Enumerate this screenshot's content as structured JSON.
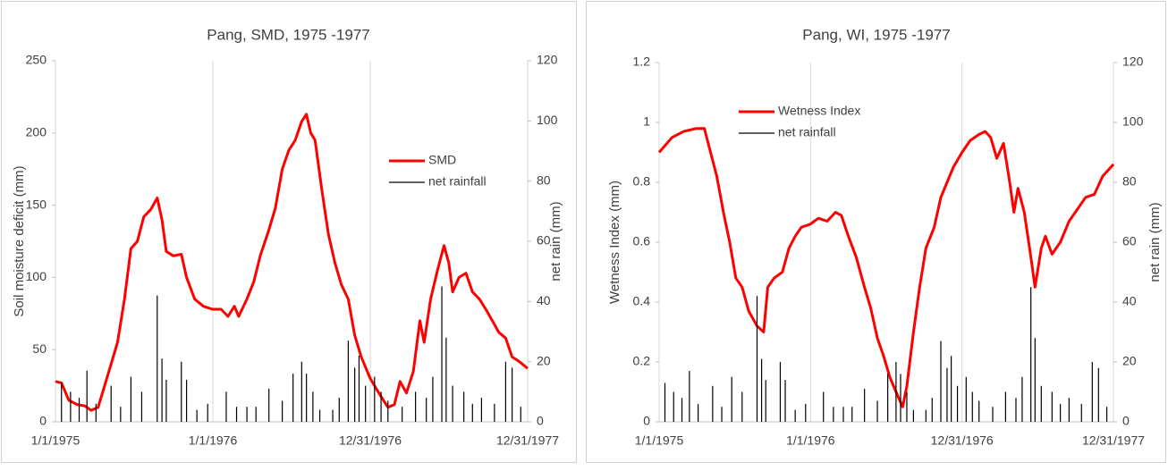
{
  "chart_data": [
    {
      "type": "line",
      "title": "Pang, SMD, 1975 -1977",
      "ylabel": "Soil moisture deficit (mm)",
      "y2label": "net rain (mm)",
      "xlim": [
        "1975-01-01",
        "1977-12-31"
      ],
      "xticks": [
        {
          "value": "1975-01-01",
          "label": "1/1/1975"
        },
        {
          "value": "1976-01-01",
          "label": "1/1/1976"
        },
        {
          "value": "1976-12-31",
          "label": "12/31/1976"
        },
        {
          "value": "1977-12-31",
          "label": "12/31/1977"
        }
      ],
      "ylim": [
        0,
        250
      ],
      "yticks": [
        0,
        50,
        100,
        150,
        200,
        250
      ],
      "y2lim": [
        0,
        120
      ],
      "y2ticks": [
        0,
        20,
        40,
        60,
        80,
        100,
        120
      ],
      "grid": "x",
      "series": [
        {
          "name": "SMD",
          "color": "#ff0000",
          "x": [
            "1975-01-01",
            "1975-01-15",
            "1975-02-01",
            "1975-02-20",
            "1975-03-10",
            "1975-03-25",
            "1975-04-10",
            "1975-04-25",
            "1975-05-10",
            "1975-05-25",
            "1975-06-10",
            "1975-06-25",
            "1975-07-10",
            "1975-07-25",
            "1975-08-10",
            "1975-08-25",
            "1975-09-05",
            "1975-09-15",
            "1975-10-01",
            "1975-10-20",
            "1975-11-01",
            "1975-11-20",
            "1975-12-10",
            "1975-12-31",
            "1976-01-20",
            "1976-02-05",
            "1976-02-20",
            "1976-03-01",
            "1976-03-20",
            "1976-04-05",
            "1976-04-20",
            "1976-05-10",
            "1976-05-25",
            "1976-06-10",
            "1976-06-25",
            "1976-07-10",
            "1976-07-25",
            "1976-08-05",
            "1976-08-15",
            "1976-08-25",
            "1976-09-10",
            "1976-09-25",
            "1976-10-10",
            "1976-10-25",
            "1976-11-10",
            "1976-11-25",
            "1976-12-10",
            "1976-12-31",
            "1977-01-20",
            "1977-02-10",
            "1977-02-25",
            "1977-03-10",
            "1977-03-25",
            "1977-04-10",
            "1977-04-25",
            "1977-05-05",
            "1977-05-20",
            "1977-06-05",
            "1977-06-20",
            "1977-07-01",
            "1977-07-10",
            "1977-07-25",
            "1977-08-10",
            "1977-08-25",
            "1977-09-10",
            "1977-09-25",
            "1977-10-10",
            "1977-10-25",
            "1977-11-10",
            "1977-11-25",
            "1977-12-10",
            "1977-12-31"
          ],
          "values": [
            28,
            27,
            15,
            12,
            11,
            8,
            10,
            25,
            40,
            55,
            85,
            120,
            125,
            142,
            147,
            155,
            140,
            118,
            115,
            116,
            100,
            85,
            80,
            78,
            78,
            73,
            80,
            73,
            85,
            97,
            115,
            133,
            148,
            175,
            188,
            195,
            208,
            213,
            200,
            195,
            160,
            130,
            110,
            95,
            85,
            60,
            45,
            30,
            20,
            10,
            12,
            28,
            20,
            35,
            70,
            55,
            85,
            105,
            122,
            110,
            90,
            100,
            103,
            90,
            85,
            78,
            70,
            62,
            58,
            45,
            42,
            37
          ]
        },
        {
          "name": "net rainfall",
          "color": "#000000",
          "axis": "y2",
          "mark": "spike",
          "x": [
            "1975-01-15",
            "1975-02-05",
            "1975-02-25",
            "1975-03-15",
            "1975-04-05",
            "1975-05-10",
            "1975-06-01",
            "1975-06-25",
            "1975-07-20",
            "1975-08-25",
            "1975-09-05",
            "1975-09-15",
            "1975-10-20",
            "1975-11-01",
            "1975-11-25",
            "1975-12-20",
            "1976-02-01",
            "1976-02-25",
            "1976-03-20",
            "1976-04-10",
            "1976-05-10",
            "1976-06-10",
            "1976-07-05",
            "1976-07-25",
            "1976-08-05",
            "1976-08-20",
            "1976-09-05",
            "1976-10-05",
            "1976-10-20",
            "1976-11-10",
            "1976-11-25",
            "1976-12-05",
            "1976-12-20",
            "1977-01-10",
            "1977-01-25",
            "1977-02-10",
            "1977-03-15",
            "1977-04-15",
            "1977-05-10",
            "1977-05-25",
            "1977-06-15",
            "1977-06-25",
            "1977-07-10",
            "1977-08-05",
            "1977-08-25",
            "1977-09-15",
            "1977-10-15",
            "1977-11-10",
            "1977-11-25",
            "1977-12-15"
          ],
          "values": [
            13,
            10,
            8,
            17,
            6,
            12,
            5,
            15,
            10,
            42,
            21,
            14,
            20,
            14,
            4,
            6,
            10,
            5,
            5,
            5,
            11,
            7,
            16,
            20,
            16,
            10,
            4,
            4,
            8,
            27,
            18,
            22,
            12,
            15,
            10,
            7,
            5,
            10,
            8,
            15,
            45,
            28,
            12,
            10,
            6,
            8,
            6,
            20,
            18,
            5
          ]
        }
      ]
    },
    {
      "type": "line",
      "title": "Pang, WI, 1975 -1977",
      "ylabel": "Wetness Index  (mm)",
      "y2label": "net rain (mm)",
      "xlim": [
        "1975-01-01",
        "1977-12-31"
      ],
      "xticks": [
        {
          "value": "1975-01-01",
          "label": "1/1/1975"
        },
        {
          "value": "1976-01-01",
          "label": "1/1/1976"
        },
        {
          "value": "1976-12-31",
          "label": "12/31/1976"
        },
        {
          "value": "1977-12-31",
          "label": "12/31/1977"
        }
      ],
      "ylim": [
        0,
        1.2
      ],
      "yticks": [
        0,
        0.2,
        0.4,
        0.6,
        0.8,
        1,
        1.2
      ],
      "y2lim": [
        0,
        120
      ],
      "y2ticks": [
        0,
        20,
        40,
        60,
        80,
        100,
        120
      ],
      "grid": "x",
      "series": [
        {
          "name": "Wetness Index",
          "color": "#ff0000",
          "x": [
            "1975-01-01",
            "1975-02-01",
            "1975-03-01",
            "1975-04-01",
            "1975-04-20",
            "1975-05-05",
            "1975-05-20",
            "1975-06-05",
            "1975-06-20",
            "1975-07-05",
            "1975-07-20",
            "1975-08-05",
            "1975-08-25",
            "1975-09-10",
            "1975-09-20",
            "1975-10-05",
            "1975-10-25",
            "1975-11-10",
            "1975-11-25",
            "1975-12-10",
            "1975-12-31",
            "1976-01-20",
            "1976-02-10",
            "1976-03-01",
            "1976-03-15",
            "1976-04-01",
            "1976-04-20",
            "1976-05-10",
            "1976-05-25",
            "1976-06-10",
            "1976-06-25",
            "1976-07-10",
            "1976-07-25",
            "1976-08-10",
            "1976-08-20",
            "1976-09-05",
            "1976-09-20",
            "1976-10-05",
            "1976-10-25",
            "1976-11-10",
            "1976-11-25",
            "1976-12-10",
            "1976-12-31",
            "1977-01-20",
            "1977-02-10",
            "1977-02-25",
            "1977-03-10",
            "1977-03-25",
            "1977-04-10",
            "1977-04-25",
            "1977-05-05",
            "1977-05-15",
            "1977-05-30",
            "1977-06-15",
            "1977-06-25",
            "1977-07-10",
            "1977-07-20",
            "1977-08-05",
            "1977-08-25",
            "1977-09-15",
            "1977-10-10",
            "1977-10-25",
            "1977-11-15",
            "1977-12-05",
            "1977-12-31"
          ],
          "values": [
            0.9,
            0.95,
            0.97,
            0.98,
            0.98,
            0.9,
            0.82,
            0.7,
            0.6,
            0.48,
            0.45,
            0.37,
            0.32,
            0.3,
            0.45,
            0.48,
            0.5,
            0.58,
            0.62,
            0.65,
            0.66,
            0.68,
            0.67,
            0.7,
            0.69,
            0.62,
            0.55,
            0.45,
            0.38,
            0.28,
            0.22,
            0.15,
            0.1,
            0.05,
            0.12,
            0.3,
            0.45,
            0.58,
            0.65,
            0.75,
            0.8,
            0.85,
            0.9,
            0.94,
            0.96,
            0.97,
            0.95,
            0.88,
            0.93,
            0.8,
            0.7,
            0.78,
            0.7,
            0.55,
            0.45,
            0.58,
            0.62,
            0.56,
            0.6,
            0.67,
            0.72,
            0.75,
            0.76,
            0.82,
            0.86
          ]
        },
        {
          "name": "net rainfall",
          "color": "#000000",
          "axis": "y2",
          "mark": "spike",
          "x": [
            "1975-01-15",
            "1975-02-05",
            "1975-02-25",
            "1975-03-15",
            "1975-04-05",
            "1975-05-10",
            "1975-06-01",
            "1975-06-25",
            "1975-07-20",
            "1975-08-25",
            "1975-09-05",
            "1975-09-15",
            "1975-10-20",
            "1975-11-01",
            "1975-11-25",
            "1975-12-20",
            "1976-02-01",
            "1976-02-25",
            "1976-03-20",
            "1976-04-10",
            "1976-05-10",
            "1976-06-10",
            "1976-07-05",
            "1976-07-25",
            "1976-08-05",
            "1976-08-20",
            "1976-09-05",
            "1976-10-05",
            "1976-10-20",
            "1976-11-10",
            "1976-11-25",
            "1976-12-05",
            "1976-12-20",
            "1977-01-10",
            "1977-01-25",
            "1977-02-10",
            "1977-03-15",
            "1977-04-15",
            "1977-05-10",
            "1977-05-25",
            "1977-06-15",
            "1977-06-25",
            "1977-07-10",
            "1977-08-05",
            "1977-08-25",
            "1977-09-15",
            "1977-10-15",
            "1977-11-10",
            "1977-11-25",
            "1977-12-15"
          ],
          "values": [
            13,
            10,
            8,
            17,
            6,
            12,
            5,
            15,
            10,
            42,
            21,
            14,
            20,
            14,
            4,
            6,
            10,
            5,
            5,
            5,
            11,
            7,
            16,
            20,
            16,
            10,
            4,
            4,
            8,
            27,
            18,
            22,
            12,
            15,
            10,
            7,
            5,
            10,
            8,
            15,
            45,
            28,
            12,
            10,
            6,
            8,
            6,
            20,
            18,
            5
          ]
        }
      ]
    }
  ]
}
